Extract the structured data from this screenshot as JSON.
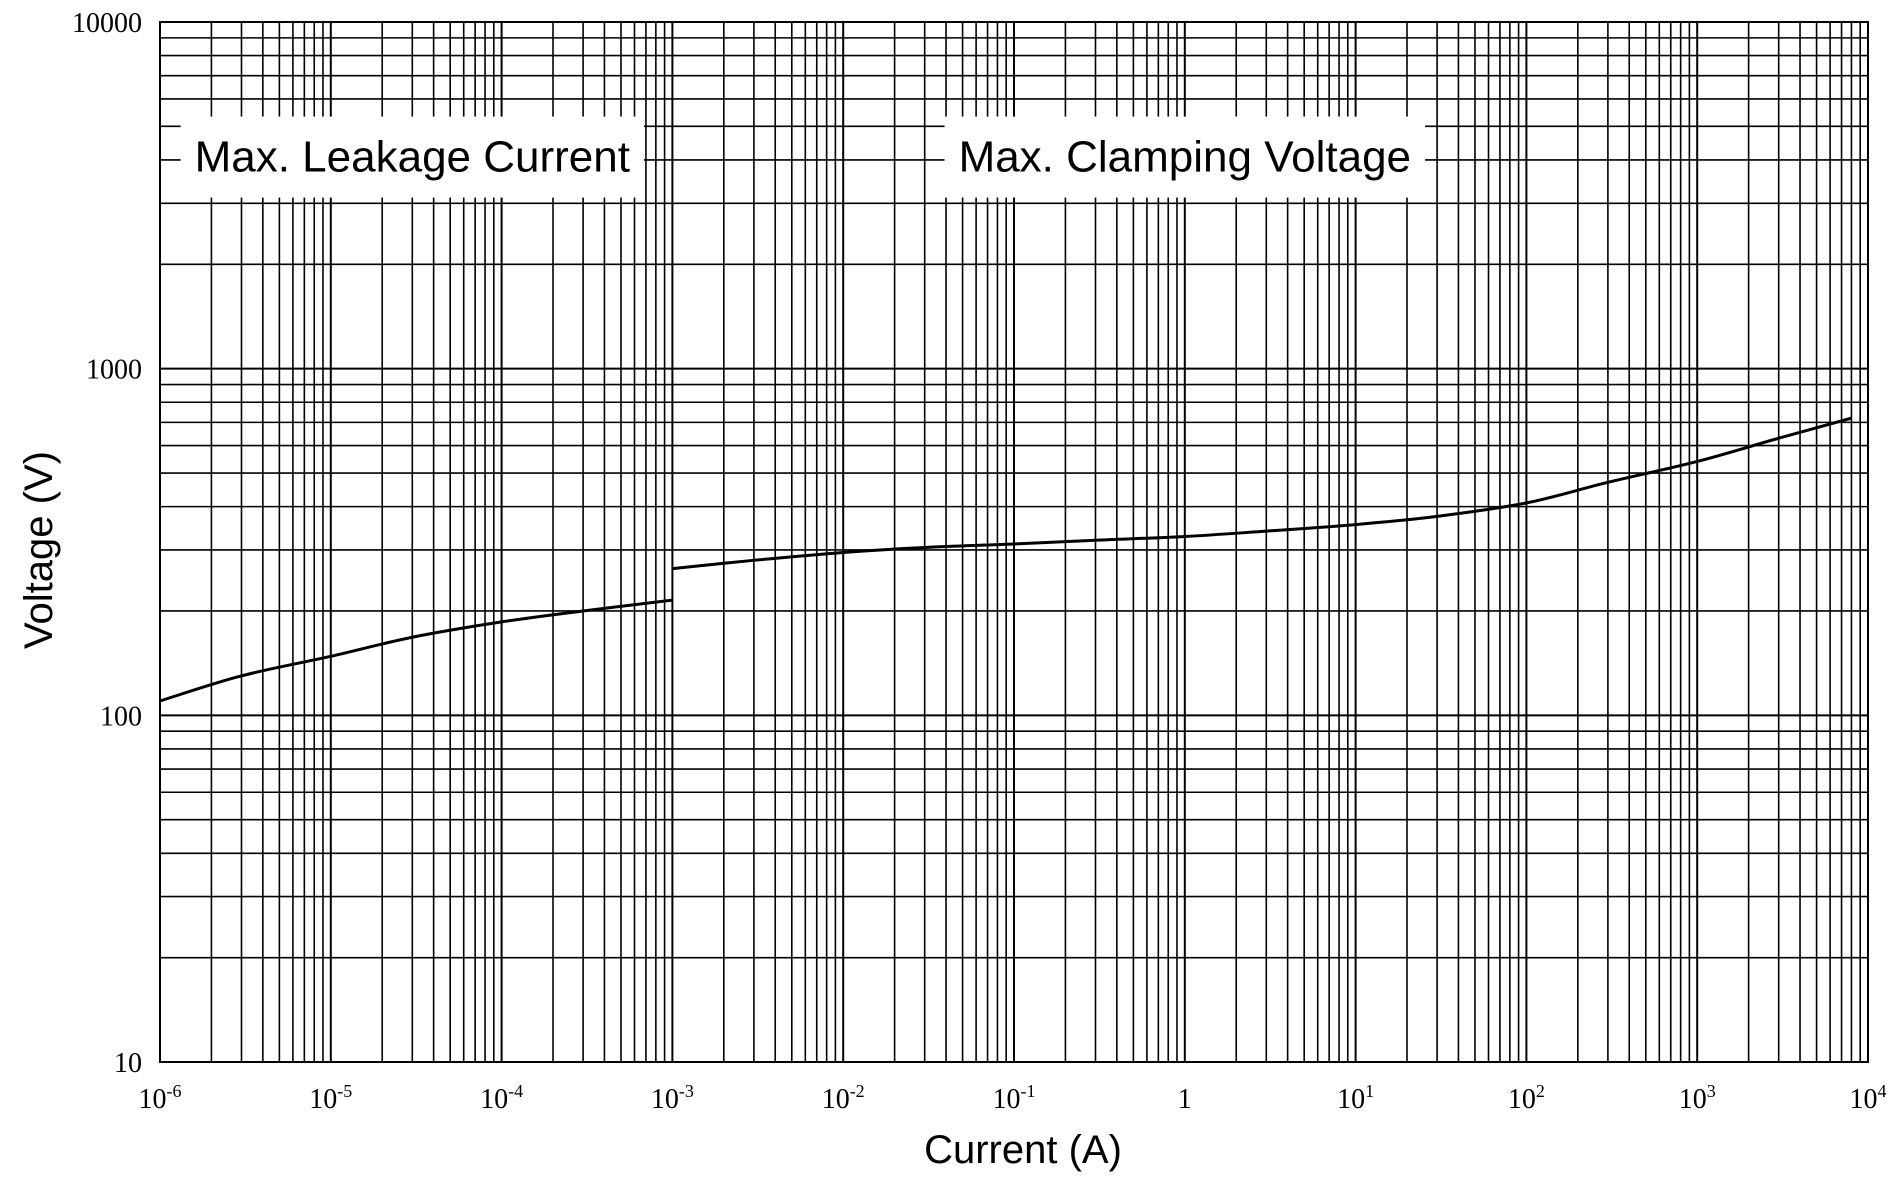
{
  "chart_data": {
    "type": "line",
    "xscale": "log",
    "yscale": "log",
    "xlim": [
      1e-06,
      10000
    ],
    "ylim": [
      10,
      10000
    ],
    "grid": true,
    "xlabel": "Current (A)",
    "ylabel": "Voltage (V)",
    "x_ticks": [
      {
        "base": "10",
        "exp": "-6",
        "value": 1e-06
      },
      {
        "base": "10",
        "exp": "-5",
        "value": 1e-05
      },
      {
        "base": "10",
        "exp": "-4",
        "value": 0.0001
      },
      {
        "base": "10",
        "exp": "-3",
        "value": 0.001
      },
      {
        "base": "10",
        "exp": "-2",
        "value": 0.01
      },
      {
        "base": "10",
        "exp": "-1",
        "value": 0.1
      },
      {
        "base": "1",
        "exp": "",
        "value": 1
      },
      {
        "base": "10",
        "exp": "1",
        "value": 10
      },
      {
        "base": "10",
        "exp": "2",
        "value": 100
      },
      {
        "base": "10",
        "exp": "3",
        "value": 1000
      },
      {
        "base": "10",
        "exp": "4",
        "value": 10000
      }
    ],
    "y_ticks": [
      {
        "label": "10",
        "value": 10
      },
      {
        "label": "100",
        "value": 100
      },
      {
        "label": "1000",
        "value": 1000
      },
      {
        "label": "10000",
        "value": 10000
      }
    ],
    "annotations": [
      {
        "text": "Max. Leakage Current",
        "x": 3e-05,
        "y": 4000
      },
      {
        "text": "Max.  Clamping  Voltage",
        "x": 1,
        "y": 4000
      }
    ],
    "series": [
      {
        "x": [
          1e-06,
          3e-06,
          1e-05,
          3e-05,
          0.0001,
          0.0003,
          0.001
        ],
        "y": [
          110,
          130,
          148,
          168,
          186,
          200,
          215
        ]
      },
      {
        "x": [
          0.001,
          0.003,
          0.01,
          0.03,
          0.1,
          0.3,
          1,
          3,
          10,
          30,
          100,
          300,
          1000,
          3000,
          8000
        ],
        "y": [
          265,
          280,
          295,
          305,
          312,
          320,
          328,
          340,
          355,
          375,
          410,
          470,
          540,
          630,
          720
        ]
      }
    ]
  }
}
